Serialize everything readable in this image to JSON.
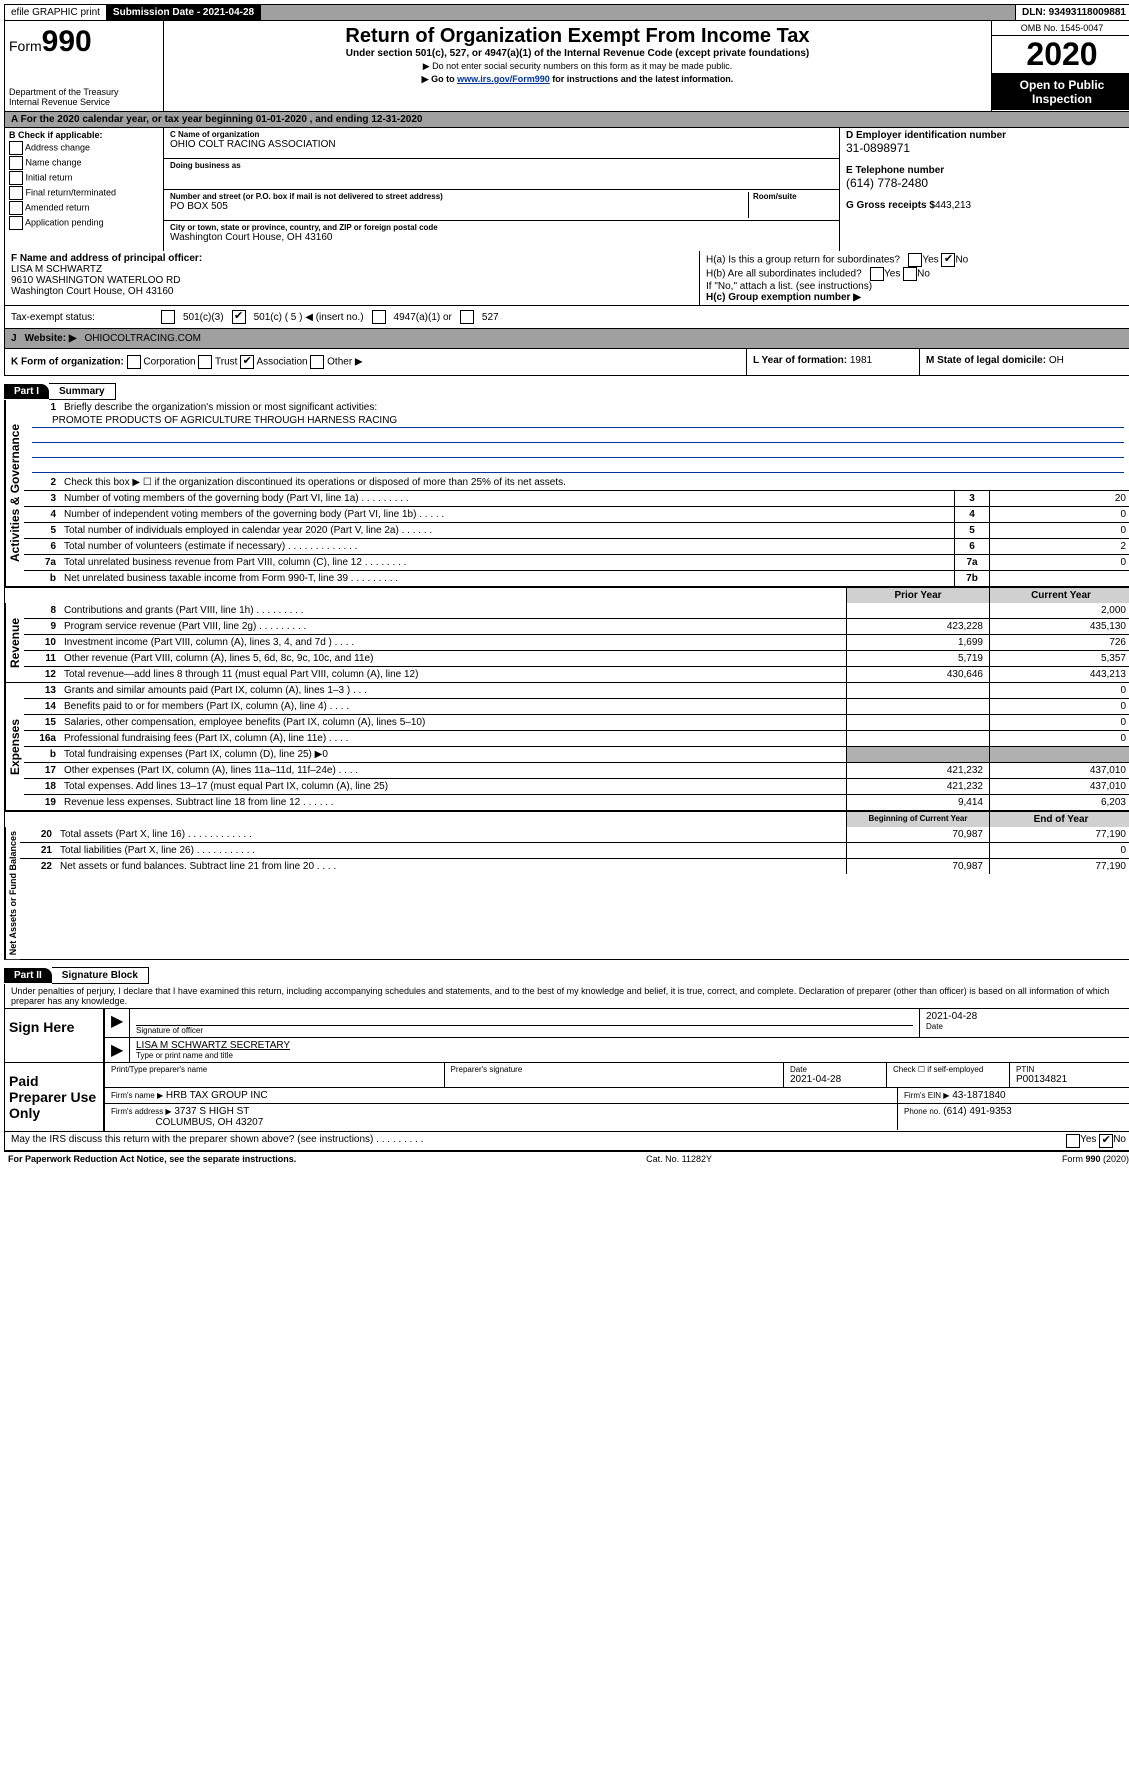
{
  "topbar": {
    "efile": "efile GRAPHIC print",
    "subdate_label": "Submission Date - 2021-04-28",
    "dln": "DLN: 93493118009881"
  },
  "header": {
    "form_word": "Form",
    "form_num": "990",
    "dept1": "Department of the Treasury",
    "dept2": "Internal Revenue Service",
    "title": "Return of Organization Exempt From Income Tax",
    "sub": "Under section 501(c), 527, or 4947(a)(1) of the Internal Revenue Code (except private foundations)",
    "note1": "▶ Do not enter social security numbers on this form as it may be made public.",
    "note2_a": "▶ Go to ",
    "note2_link": "www.irs.gov/Form990",
    "note2_b": " for instructions and the latest information.",
    "omb": "OMB No. 1545-0047",
    "year": "2020",
    "inspect1": "Open to Public",
    "inspect2": "Inspection"
  },
  "rowA": "A For the 2020 calendar year, or tax year beginning 01-01-2020    , and ending 12-31-2020",
  "boxB": {
    "label": "B Check if applicable:",
    "opts": [
      "Address change",
      "Name change",
      "Initial return",
      "Final return/terminated",
      "Amended return",
      "Application pending"
    ]
  },
  "boxC": {
    "name_lbl": "C Name of organization",
    "name": "OHIO COLT RACING ASSOCIATION",
    "dba_lbl": "Doing business as",
    "addr_lbl": "Number and street (or P.O. box if mail is not delivered to street address)",
    "room_lbl": "Room/suite",
    "addr": "PO BOX 505",
    "city_lbl": "City or town, state or province, country, and ZIP or foreign postal code",
    "city": "Washington Court House, OH  43160"
  },
  "boxD": {
    "ein_lbl": "D Employer identification number",
    "ein": "31-0898971",
    "tel_lbl": "E Telephone number",
    "tel": "(614) 778-2480",
    "gross_lbl": "G Gross receipts $",
    "gross": "443,213"
  },
  "boxF": {
    "lbl": "F Name and address of principal officer:",
    "l1": "LISA M SCHWARTZ",
    "l2": "9610 WASHINGTON WATERLOO RD",
    "l3": "Washington Court House, OH  43160"
  },
  "boxH": {
    "a": "H(a)  Is this a group return for subordinates?",
    "b": "H(b)  Are all subordinates included?",
    "b2": "If \"No,\" attach a list. (see instructions)",
    "c": "H(c)  Group exemption number ▶",
    "yes": "Yes",
    "no": "No"
  },
  "taxstatus": {
    "lbl": "Tax-exempt status:",
    "o1": "501(c)(3)",
    "o2": "501(c) ( 5 ) ◀ (insert no.)",
    "o3": "4947(a)(1) or",
    "o4": "527"
  },
  "rowJ": {
    "lbl": "J",
    "txt": "Website: ▶",
    "val": "OHIOCOLTRACING.COM"
  },
  "rowK": {
    "k": "K Form of organization:",
    "opts": [
      "Corporation",
      "Trust",
      "Association",
      "Other ▶"
    ],
    "l_lbl": "L Year of formation:",
    "l_val": "1981",
    "m_lbl": "M State of legal domicile:",
    "m_val": "OH"
  },
  "part1": {
    "hdr": "Part I",
    "title": "Summary",
    "q1": "Briefly describe the organization's mission or most significant activities:",
    "mission": "PROMOTE PRODUCTS OF AGRICULTURE THROUGH HARNESS RACING",
    "q2": "Check this box ▶ ☐  if the organization discontinued its operations or disposed of more than 25% of its net assets.",
    "lines_gov": [
      {
        "n": "3",
        "t": "Number of voting members of the governing body (Part VI, line 1a)  .   .   .   .   .   .   .   .   .",
        "b": "3",
        "v": "20"
      },
      {
        "n": "4",
        "t": "Number of independent voting members of the governing body (Part VI, line 1b)  .   .   .   .   .",
        "b": "4",
        "v": "0"
      },
      {
        "n": "5",
        "t": "Total number of individuals employed in calendar year 2020 (Part V, line 2a)  .   .   .   .   .   .",
        "b": "5",
        "v": "0"
      },
      {
        "n": "6",
        "t": "Total number of volunteers (estimate if necessary)  .   .   .   .   .   .   .   .   .   .   .   .   .",
        "b": "6",
        "v": "2"
      },
      {
        "n": "7a",
        "t": "Total unrelated business revenue from Part VIII, column (C), line 12  .   .   .   .   .   .   .   .",
        "b": "7a",
        "v": "0"
      },
      {
        "n": "b",
        "t": "Net unrelated business taxable income from Form 990-T, line 39   .   .   .   .   .   .   .   .   .",
        "b": "7b",
        "v": ""
      }
    ],
    "col_hdr": {
      "prior": "Prior Year",
      "curr": "Current Year"
    },
    "lines_rev": [
      {
        "n": "8",
        "t": "Contributions and grants (Part VIII, line 1h)  .   .   .   .   .   .   .   .   .",
        "p": "",
        "c": "2,000"
      },
      {
        "n": "9",
        "t": "Program service revenue (Part VIII, line 2g)  .   .   .   .   .   .   .   .   .",
        "p": "423,228",
        "c": "435,130"
      },
      {
        "n": "10",
        "t": "Investment income (Part VIII, column (A), lines 3, 4, and 7d )  .   .   .   .",
        "p": "1,699",
        "c": "726"
      },
      {
        "n": "11",
        "t": "Other revenue (Part VIII, column (A), lines 5, 6d, 8c, 9c, 10c, and 11e)",
        "p": "5,719",
        "c": "5,357"
      },
      {
        "n": "12",
        "t": "Total revenue—add lines 8 through 11 (must equal Part VIII, column (A), line 12)",
        "p": "430,646",
        "c": "443,213"
      }
    ],
    "lines_exp": [
      {
        "n": "13",
        "t": "Grants and similar amounts paid (Part IX, column (A), lines 1–3 )  .   .   .",
        "p": "",
        "c": "0"
      },
      {
        "n": "14",
        "t": "Benefits paid to or for members (Part IX, column (A), line 4)  .   .   .   .",
        "p": "",
        "c": "0"
      },
      {
        "n": "15",
        "t": "Salaries, other compensation, employee benefits (Part IX, column (A), lines 5–10)",
        "p": "",
        "c": "0"
      },
      {
        "n": "16a",
        "t": "Professional fundraising fees (Part IX, column (A), line 11e)  .   .   .   .",
        "p": "",
        "c": "0"
      },
      {
        "n": "b",
        "t": "Total fundraising expenses (Part IX, column (D), line 25) ▶0",
        "p": "shade",
        "c": "shade"
      },
      {
        "n": "17",
        "t": "Other expenses (Part IX, column (A), lines 11a–11d, 11f–24e)  .   .   .   .",
        "p": "421,232",
        "c": "437,010"
      },
      {
        "n": "18",
        "t": "Total expenses. Add lines 13–17 (must equal Part IX, column (A), line 25)",
        "p": "421,232",
        "c": "437,010"
      },
      {
        "n": "19",
        "t": "Revenue less expenses. Subtract line 18 from line 12  .   .   .   .   .   .",
        "p": "9,414",
        "c": "6,203"
      }
    ],
    "col_hdr2": {
      "prior": "Beginning of Current Year",
      "curr": "End of Year"
    },
    "lines_net": [
      {
        "n": "20",
        "t": "Total assets (Part X, line 16)  .   .   .   .   .   .   .   .   .   .   .   .",
        "p": "70,987",
        "c": "77,190"
      },
      {
        "n": "21",
        "t": "Total liabilities (Part X, line 26)  .   .   .   .   .   .   .   .   .   .   .",
        "p": "",
        "c": "0"
      },
      {
        "n": "22",
        "t": "Net assets or fund balances. Subtract line 21 from line 20  .   .   .   .",
        "p": "70,987",
        "c": "77,190"
      }
    ],
    "vlabels": {
      "gov": "Activities & Governance",
      "rev": "Revenue",
      "exp": "Expenses",
      "net": "Net Assets or\nFund Balances"
    }
  },
  "part2": {
    "hdr": "Part II",
    "title": "Signature Block",
    "decl": "Under penalties of perjury, I declare that I have examined this return, including accompanying schedules and statements, and to the best of my knowledge and belief, it is true, correct, and complete. Declaration of preparer (other than officer) is based on all information of which preparer has any knowledge.",
    "sign_here": "Sign Here",
    "sig_officer": "Signature of officer",
    "sig_date_lbl": "Date",
    "sig_date": "2021-04-28",
    "name_title": "LISA M SCHWARTZ  SECRETARY",
    "name_title_lbl": "Type or print name and title",
    "paid": "Paid Preparer Use Only",
    "prep_name_lbl": "Print/Type preparer's name",
    "prep_sig_lbl": "Preparer's signature",
    "prep_date_lbl": "Date",
    "prep_date": "2021-04-28",
    "self_emp": "Check ☐ if self-employed",
    "ptin_lbl": "PTIN",
    "ptin": "P00134821",
    "firm_name_lbl": "Firm's name    ▶",
    "firm_name": "HRB TAX GROUP INC",
    "firm_ein_lbl": "Firm's EIN ▶",
    "firm_ein": "43-1871840",
    "firm_addr_lbl": "Firm's address ▶",
    "firm_addr1": "3737 S HIGH ST",
    "firm_addr2": "COLUMBUS, OH  43207",
    "phone_lbl": "Phone no.",
    "phone": "(614) 491-9353",
    "discuss": "May the IRS discuss this return with the preparer shown above? (see instructions)    .    .    .    .    .    .    .    .    .",
    "yes": "Yes",
    "no": "No"
  },
  "footer": {
    "l": "For Paperwork Reduction Act Notice, see the separate instructions.",
    "m": "Cat. No. 11282Y",
    "r": "Form 990 (2020)"
  }
}
